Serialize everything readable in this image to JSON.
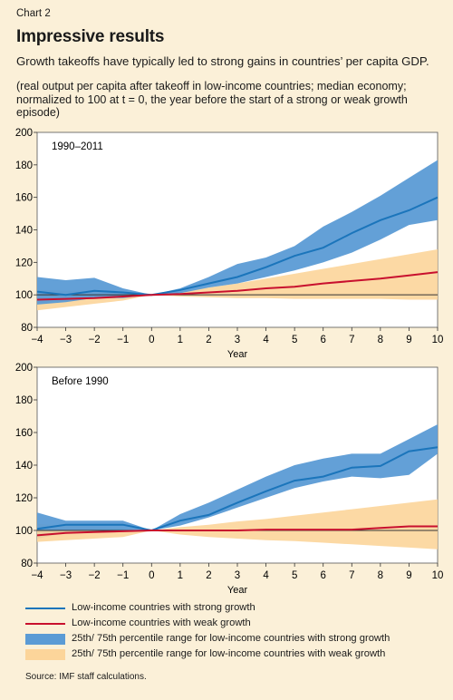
{
  "header": {
    "chart_label": "Chart 2",
    "title": "Impressive results",
    "subtitle": "Growth takeoffs have typically led to strong gains in countries’ per capita GDP.",
    "note": "(real output per capita after takeoff in low-income countries; median economy; normalized to 100 at t = 0, the year before the start of a strong or weak growth episode)"
  },
  "colors": {
    "background": "#fbf0d8",
    "plot_background": "#ffffff",
    "strong_line": "#1b75bb",
    "weak_line": "#c8102e",
    "strong_band": "#5b9bd5",
    "weak_band": "#fcd59a",
    "baseline": "#333333"
  },
  "legend": {
    "items": [
      {
        "label": "Low-income countries with strong growth",
        "kind": "line",
        "color_key": "strong_line"
      },
      {
        "label": "Low-income countries with weak growth",
        "kind": "line",
        "color_key": "weak_line"
      },
      {
        "label": "25th/ 75th percentile range for low-income countries with strong growth",
        "kind": "band",
        "color_key": "strong_band"
      },
      {
        "label": "25th/ 75th percentile range for low-income countries with weak growth",
        "kind": "band",
        "color_key": "weak_band"
      }
    ]
  },
  "source": "Source: IMF staff calculations.",
  "chart_data": [
    {
      "type": "line",
      "panel_label": "1990–2011",
      "xlabel": "Year",
      "ylabel": "",
      "x": [
        -4,
        -3,
        -2,
        -1,
        0,
        1,
        2,
        3,
        4,
        5,
        6,
        7,
        8,
        9,
        10
      ],
      "xlim": [
        -4,
        10
      ],
      "ylim": [
        80,
        200
      ],
      "yticks": [
        80,
        100,
        120,
        140,
        160,
        180,
        200
      ],
      "reference_line": 100,
      "series": [
        {
          "name": "Low-income countries with strong growth",
          "kind": "line",
          "color_key": "strong_line",
          "values": [
            102,
            100,
            102.5,
            101.5,
            100,
            103,
            107,
            111,
            117,
            124,
            129,
            138,
            146,
            152,
            160
          ]
        },
        {
          "name": "Low-income countries with weak growth",
          "kind": "line",
          "color_key": "weak_line",
          "values": [
            97,
            97.5,
            98,
            99,
            100,
            100.5,
            101.5,
            102.5,
            104,
            105,
            107,
            108.5,
            110,
            112,
            114
          ]
        }
      ],
      "bands": [
        {
          "name": "25th/ 75th percentile range for low-income countries with weak growth",
          "color_key": "weak_band",
          "upper": [
            103,
            102.5,
            102,
            101,
            100,
            102,
            104.5,
            107,
            110,
            113,
            116,
            119,
            122,
            125,
            128
          ],
          "lower": [
            90.5,
            92.5,
            94.5,
            96.5,
            100,
            99,
            98.5,
            98,
            98,
            97.5,
            97.5,
            97.5,
            97.5,
            97,
            97
          ]
        },
        {
          "name": "25th/ 75th percentile range for low-income countries with strong growth",
          "color_key": "strong_band",
          "upper": [
            111,
            109,
            110.5,
            104,
            100,
            104,
            111,
            119,
            123,
            130,
            142,
            151,
            161,
            172,
            183
          ],
          "lower": [
            94,
            95.5,
            98,
            98,
            100,
            101,
            104.5,
            107,
            111,
            115,
            120,
            126,
            134,
            143,
            146
          ]
        }
      ]
    },
    {
      "type": "line",
      "panel_label": "Before 1990",
      "xlabel": "Year",
      "ylabel": "",
      "x": [
        -4,
        -3,
        -2,
        -1,
        0,
        1,
        2,
        3,
        4,
        5,
        6,
        7,
        8,
        9,
        10
      ],
      "xlim": [
        -4,
        10
      ],
      "ylim": [
        80,
        200
      ],
      "yticks": [
        80,
        100,
        120,
        140,
        160,
        180,
        200
      ],
      "reference_line": 100,
      "series": [
        {
          "name": "Low-income countries with strong growth",
          "kind": "line",
          "color_key": "strong_line",
          "values": [
            101,
            103.5,
            103.5,
            103.5,
            100,
            106,
            109.5,
            117,
            124,
            130.5,
            133,
            138.5,
            139.5,
            148.5,
            151
          ]
        },
        {
          "name": "Low-income countries with weak growth",
          "kind": "line",
          "color_key": "weak_line",
          "values": [
            97,
            98.5,
            99,
            99.5,
            100,
            100,
            100,
            100,
            100.5,
            100.5,
            100.5,
            100.5,
            101.5,
            102.5,
            102.5
          ]
        }
      ],
      "bands": [
        {
          "name": "25th/ 75th percentile range for low-income countries with weak growth",
          "color_key": "weak_band",
          "upper": [
            104,
            103,
            102.5,
            101.5,
            100,
            102,
            103.5,
            105.5,
            107,
            109,
            111,
            113,
            115,
            117,
            119
          ]
        },
        {
          "name": "25th/ 75th percentile range for low-income countries with strong growth",
          "color_key": "strong_band",
          "upper": [
            111,
            106,
            106,
            106,
            100,
            110,
            117,
            125,
            133,
            140,
            144,
            147,
            147,
            156,
            165
          ],
          "lower": [
            95,
            98.5,
            99,
            99,
            100,
            103,
            108,
            114,
            120,
            126,
            130,
            133,
            132,
            134,
            147
          ]
        }
      ]
    }
  ]
}
